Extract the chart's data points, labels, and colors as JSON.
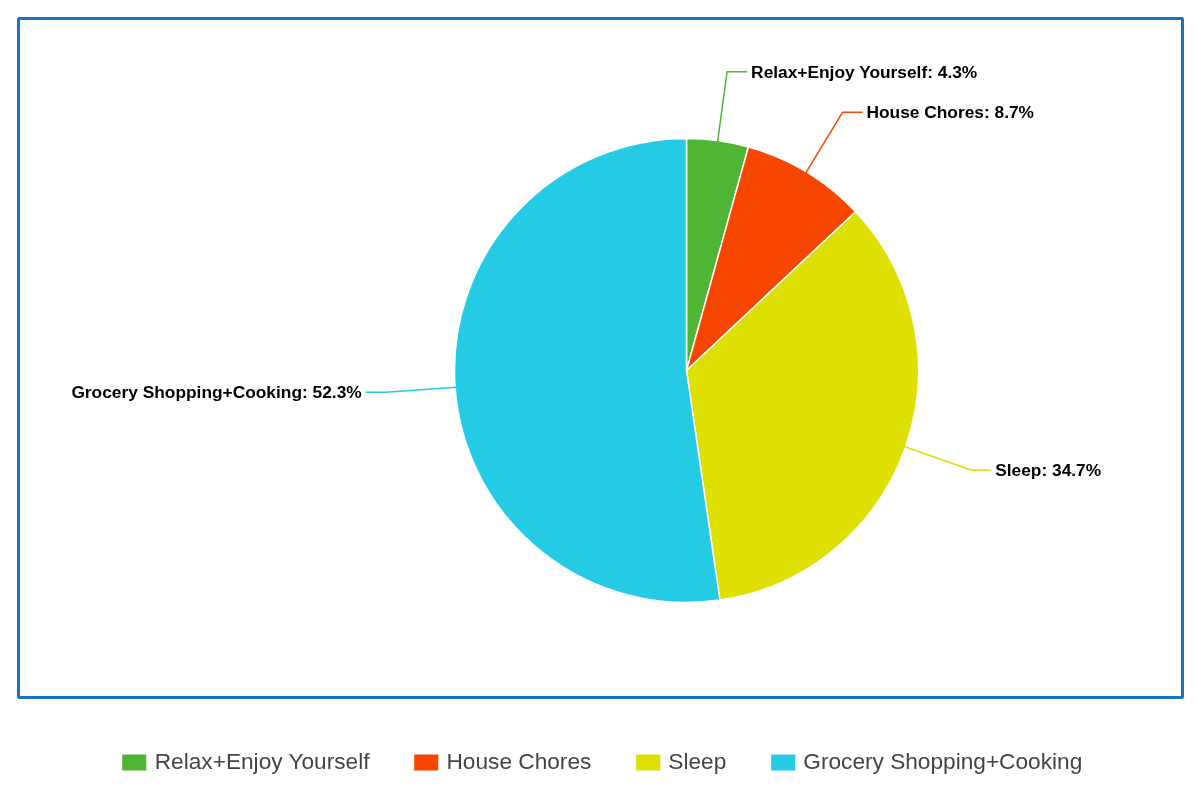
{
  "chart_data": {
    "type": "pie",
    "categories": [
      "Relax+Enjoy Yourself",
      "House Chores",
      "Sleep",
      "Grocery Shopping+Cooking"
    ],
    "values": [
      4.3,
      8.7,
      34.7,
      52.3
    ],
    "colors": [
      "#4fb535",
      "#f74600",
      "#dde000",
      "#25cbe4"
    ],
    "value_labels": [
      "Relax+Enjoy Yourself: 4.3%",
      "House Chores: 8.7%",
      "Sleep: 34.7%",
      "Grocery Shopping+Cooking: 52.3%"
    ],
    "legend": "bottom"
  }
}
